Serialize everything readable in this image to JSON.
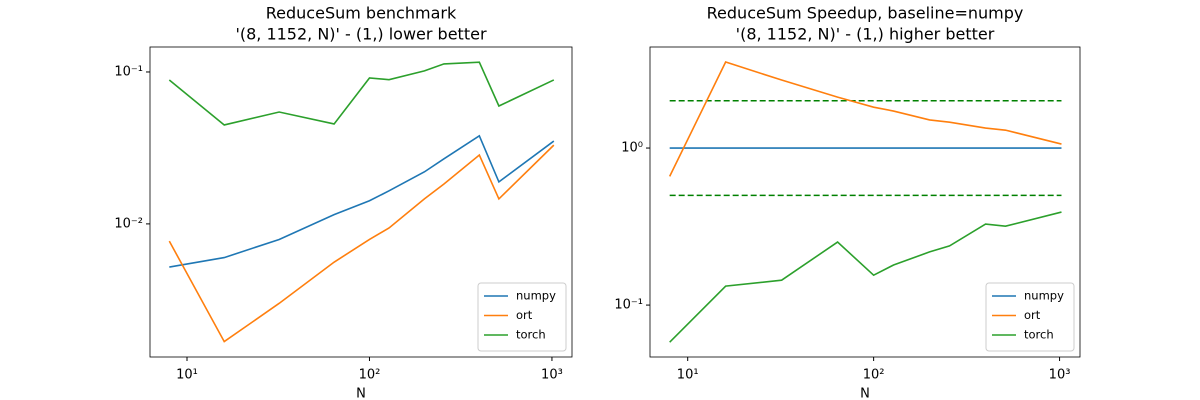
{
  "chart_data": [
    {
      "type": "line",
      "title": [
        "ReduceSum benchmark",
        "'(8, 1152, N)' - (1,) lower better"
      ],
      "xlabel": "N",
      "x": [
        8,
        16,
        32,
        64,
        100,
        128,
        200,
        256,
        400,
        512,
        1024
      ],
      "series": [
        {
          "name": "numpy",
          "color": "#1f77b4",
          "values": [
            0.0052,
            0.006,
            0.0079,
            0.0115,
            0.0142,
            0.0165,
            0.022,
            0.0268,
            0.038,
            0.0189,
            0.0351
          ]
        },
        {
          "name": "ort",
          "color": "#ff7f0e",
          "values": [
            0.0077,
            0.00168,
            0.003,
            0.0056,
            0.0079,
            0.0094,
            0.0146,
            0.0183,
            0.0284,
            0.0146,
            0.033
          ]
        },
        {
          "name": "torch",
          "color": "#2ca02c",
          "values": [
            0.0886,
            0.0448,
            0.0545,
            0.0455,
            0.0913,
            0.089,
            0.1016,
            0.113,
            0.116,
            0.0597,
            0.0886
          ]
        }
      ],
      "xscale": "log",
      "yscale": "log",
      "xlim": [
        6.27,
        1288
      ],
      "ylim": [
        0.00133,
        0.146
      ],
      "xticks": [
        {
          "value": 10,
          "label": "10¹"
        },
        {
          "value": 100,
          "label": "10²"
        },
        {
          "value": 1000,
          "label": "10³"
        }
      ],
      "yticks": [
        {
          "value": 0.01,
          "label": "10⁻²"
        },
        {
          "value": 0.1,
          "label": "10⁻¹"
        }
      ],
      "legend": "lower right"
    },
    {
      "type": "line",
      "title": [
        "ReduceSum Speedup, baseline=numpy",
        "'(8, 1152, N)' - (1,) higher better"
      ],
      "xlabel": "N",
      "x": [
        8,
        16,
        32,
        64,
        100,
        128,
        200,
        256,
        400,
        512,
        1024
      ],
      "series": [
        {
          "name": "numpy",
          "color": "#1f77b4",
          "values": [
            1,
            1,
            1,
            1,
            1,
            1,
            1,
            1,
            1,
            1,
            1
          ]
        },
        {
          "name": "ort",
          "color": "#ff7f0e",
          "values": [
            0.66,
            3.53,
            2.71,
            2.11,
            1.82,
            1.72,
            1.51,
            1.46,
            1.34,
            1.3,
            1.06
          ]
        },
        {
          "name": "torch",
          "color": "#2ca02c",
          "values": [
            0.058,
            0.132,
            0.144,
            0.252,
            0.155,
            0.18,
            0.218,
            0.238,
            0.328,
            0.318,
            0.391
          ]
        }
      ],
      "hlines": {
        "values": [
          2,
          0.5
        ],
        "color": "#008000",
        "style": "dashed"
      },
      "xscale": "log",
      "yscale": "log",
      "xlim": [
        6.27,
        1288
      ],
      "ylim": [
        0.0467,
        4.4
      ],
      "xticks": [
        {
          "value": 10,
          "label": "10¹"
        },
        {
          "value": 100,
          "label": "10²"
        },
        {
          "value": 1000,
          "label": "10³"
        }
      ],
      "yticks": [
        {
          "value": 0.1,
          "label": "10⁻¹"
        },
        {
          "value": 1,
          "label": "10⁰"
        }
      ],
      "legend": "lower right"
    }
  ]
}
